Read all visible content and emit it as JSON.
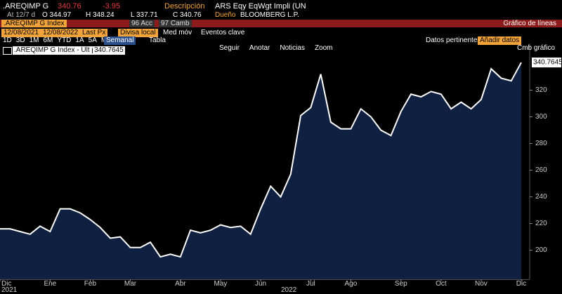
{
  "header": {
    "ticker": ".AREQIMP G",
    "last": "340.76",
    "change": "-3.95",
    "desc_label": "Descripción",
    "desc": "ARS Eqy EqWgt Impli (UN",
    "at": "At 12/7 d",
    "open": "O 344.97",
    "high": "H 348.24",
    "low": "L 337.71",
    "close": "C 340.76",
    "owner_label": "Dueño",
    "owner": "BLOOMBERG L.P.",
    "security": ".AREQIMP G Index",
    "actions": "96 Acc",
    "change_menu": "97 Camb",
    "chart_kind": "Gráfico de líneas",
    "start_date": "12/08/2021",
    "end_date": "12/08/2022",
    "field": "Last Px",
    "currency": "Divisa local",
    "moving_avg": "Med móv",
    "events": "Eventos clave",
    "periods": [
      "1D",
      "3D",
      "1M",
      "6M",
      "YTD",
      "1A",
      "5A",
      "Máx"
    ],
    "frequency": "Semanal",
    "table": "Tabla",
    "related": "Datos pertinentes",
    "add_data": "Añadir datos",
    "change_chart": "Cmb gráfico",
    "tools": [
      "Seguir",
      "Anotar",
      "Noticias",
      "Zoom"
    ]
  },
  "chart_data": {
    "type": "area",
    "legend": ".AREQIMP G Index - Últ precio",
    "color": "#ffffff",
    "fill": "#0f2040",
    "grid": false,
    "categories": [
      "Dic",
      null,
      null,
      null,
      null,
      "Ene",
      null,
      null,
      null,
      "Feb",
      null,
      null,
      null,
      "Mar",
      null,
      null,
      null,
      null,
      "Abr",
      null,
      null,
      null,
      "May",
      null,
      null,
      null,
      "Jun",
      null,
      null,
      null,
      null,
      "Jul",
      null,
      null,
      null,
      "Ago",
      null,
      null,
      null,
      null,
      "Sep",
      null,
      null,
      null,
      "Oct",
      null,
      null,
      null,
      "Nov",
      null,
      null,
      null,
      "Dic"
    ],
    "year_labels": [
      "2021",
      "2022"
    ],
    "values": [
      216,
      216,
      214,
      212,
      218,
      214,
      231,
      231,
      228,
      223,
      217,
      209,
      210,
      202,
      202,
      206,
      195,
      197,
      195,
      215,
      213,
      215,
      219,
      217,
      218,
      212,
      231,
      248,
      240,
      257,
      301,
      307,
      332,
      296,
      291,
      291,
      306,
      300,
      290,
      286,
      304,
      317,
      315,
      319,
      317,
      306,
      311,
      306,
      313,
      336,
      329,
      327,
      340.7645
    ],
    "ylim": [
      178,
      355
    ],
    "yticks": [
      200,
      220,
      240,
      260,
      280,
      300,
      320
    ]
  }
}
